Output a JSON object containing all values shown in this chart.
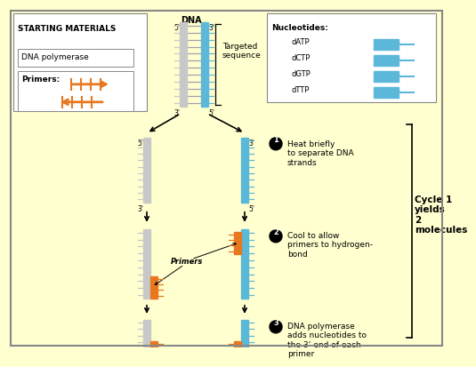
{
  "bg_color": "#FFFFD0",
  "title": "STARTING MATERIALS",
  "dna_label": "DNA",
  "box1_text": "DNA polymerase",
  "primers_label": "Primers:",
  "targeted_seq": "Targeted\nsequence",
  "nucleotides_title": "Nucleotides:",
  "nucleotides": [
    "dATP",
    "dCTP",
    "dGTP",
    "dTTP"
  ],
  "step1_text": "Heat briefly\nto separate DNA\nstrands",
  "step2_text": "Cool to allow\nprimers to hydrogen-\nbond",
  "step3_text": "DNA polymerase\nadds nucleotides to\nthe 3’ end of each\nprimer",
  "cycle_text": "Cycle 1\nyields\n2\nmolecules",
  "orange_color": "#E87820",
  "blue_color": "#5BB8D8",
  "gray_color": "#C8C8C8",
  "rung_color": "#A0A0B0",
  "white_color": "#FFFFFF"
}
